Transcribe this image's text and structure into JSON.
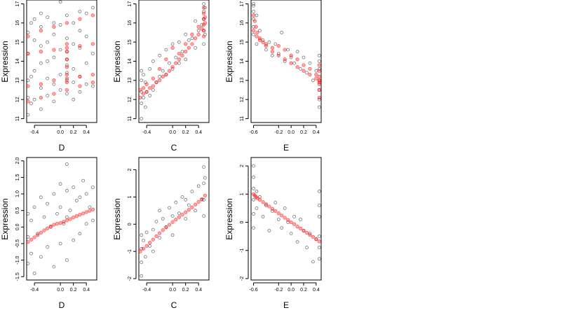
{
  "colors": {
    "observed": "#000000",
    "fitted": "#ff0000",
    "background": "#ffffff"
  },
  "chart_data": [
    {
      "type": "scatter",
      "row": 0,
      "col": 0,
      "xlabel": "D",
      "ylabel": "Expression",
      "xlim": [
        -0.52,
        0.56
      ],
      "ylim": [
        10.8,
        17.2
      ],
      "xticks": [
        -0.4,
        0.0,
        0.2,
        0.4
      ],
      "xtick_labels": [
        "-0.4",
        "0.0",
        "0.2",
        "0.4"
      ],
      "yticks": [
        11,
        12,
        13,
        14,
        15,
        16,
        17
      ],
      "ytick_labels": [
        "11",
        "12",
        "13",
        "14",
        "15",
        "16",
        "17"
      ],
      "grid": false,
      "observed": {
        "x": [
          -0.5,
          -0.5,
          -0.5,
          -0.5,
          -0.5,
          -0.45,
          -0.45,
          -0.45,
          -0.4,
          -0.4,
          -0.4,
          -0.4,
          -0.3,
          -0.3,
          -0.3,
          -0.3,
          -0.3,
          -0.3,
          -0.2,
          -0.2,
          -0.2,
          -0.2,
          -0.2,
          -0.1,
          -0.1,
          -0.1,
          -0.1,
          -0.1,
          0.0,
          0.0,
          0.0,
          0.0,
          0.0,
          0.1,
          0.1,
          0.1,
          0.1,
          0.1,
          0.1,
          0.1,
          0.1,
          0.2,
          0.2,
          0.2,
          0.2,
          0.2,
          0.3,
          0.3,
          0.3,
          0.3,
          0.3,
          0.4,
          0.4,
          0.4,
          0.4,
          0.5,
          0.5,
          0.5
        ],
        "y": [
          11.2,
          12.1,
          13.0,
          14.4,
          15.5,
          11.8,
          13.2,
          16.0,
          12.0,
          13.5,
          15.1,
          16.2,
          11.5,
          12.6,
          13.9,
          14.8,
          15.8,
          16.5,
          12.2,
          13.1,
          14.0,
          15.0,
          16.3,
          11.9,
          12.8,
          14.2,
          15.4,
          16.0,
          12.5,
          13.3,
          14.6,
          15.9,
          17.1,
          12.3,
          13.0,
          13.4,
          13.8,
          14.1,
          14.5,
          15.2,
          16.4,
          12.0,
          12.9,
          13.6,
          14.9,
          16.0,
          12.4,
          13.2,
          14.7,
          15.6,
          16.6,
          12.8,
          13.9,
          15.3,
          16.5,
          12.7,
          14.4,
          16.8
        ]
      },
      "fitted": [
        {
          "x": [
            -0.5,
            -0.3,
            -0.1,
            0.1,
            0.3,
            0.5
          ],
          "y": [
            11.9,
            12.1,
            12.3,
            12.5,
            12.7,
            12.9
          ]
        },
        {
          "x": [
            -0.5,
            -0.3,
            -0.1,
            0.1,
            0.3,
            0.5
          ],
          "y": [
            12.7,
            12.8,
            13.0,
            13.1,
            13.2,
            13.3
          ]
        },
        {
          "x": [
            -0.5,
            -0.3,
            -0.1,
            0.1,
            0.3,
            0.5
          ],
          "y": [
            14.4,
            14.5,
            14.6,
            14.7,
            14.8,
            14.9
          ]
        },
        {
          "x": [
            -0.5,
            -0.3,
            -0.1,
            0.1,
            0.3,
            0.5
          ],
          "y": [
            15.3,
            15.6,
            15.8,
            16.0,
            16.2,
            16.4
          ]
        },
        {
          "x": [
            0.1,
            0.1,
            0.1,
            0.1,
            0.1,
            0.1
          ],
          "y": [
            12.9,
            13.3,
            13.7,
            14.1,
            14.5,
            14.9
          ]
        }
      ]
    },
    {
      "type": "scatter",
      "row": 0,
      "col": 1,
      "xlabel": "C",
      "ylabel": "Expression",
      "xlim": [
        -0.52,
        0.56
      ],
      "ylim": [
        10.8,
        17.2
      ],
      "xticks": [
        -0.4,
        0.0,
        0.2,
        0.4
      ],
      "xtick_labels": [
        "-0.4",
        "0.0",
        "0.2",
        "0.4"
      ],
      "yticks": [
        11,
        12,
        13,
        14,
        15,
        16,
        17
      ],
      "ytick_labels": [
        "11",
        "12",
        "13",
        "14",
        "15",
        "16",
        "17"
      ],
      "grid": false,
      "observed": {
        "x": [
          -0.48,
          -0.48,
          -0.48,
          -0.48,
          -0.48,
          -0.45,
          -0.45,
          -0.42,
          -0.42,
          -0.4,
          -0.35,
          -0.35,
          -0.3,
          -0.3,
          -0.25,
          -0.2,
          -0.2,
          -0.15,
          -0.1,
          -0.1,
          -0.05,
          0.0,
          0.0,
          0.05,
          0.1,
          0.1,
          0.15,
          0.2,
          0.2,
          0.25,
          0.3,
          0.35,
          0.35,
          0.4,
          0.45,
          0.48,
          0.48,
          0.48,
          0.48,
          0.48,
          0.5,
          0.5
        ],
        "y": [
          11.0,
          11.8,
          12.4,
          13.0,
          13.5,
          12.1,
          13.3,
          11.6,
          12.9,
          12.4,
          12.2,
          13.6,
          12.5,
          14.0,
          12.9,
          13.2,
          14.3,
          13.5,
          13.3,
          14.6,
          13.9,
          13.6,
          14.9,
          14.2,
          13.9,
          15.0,
          14.5,
          14.1,
          15.4,
          15.1,
          15.2,
          14.7,
          16.1,
          15.6,
          15.9,
          14.9,
          15.6,
          16.2,
          16.6,
          17.0,
          15.4,
          16.8
        ]
      },
      "fitted": [
        {
          "x": [
            -0.5,
            -0.45,
            -0.4,
            -0.35,
            -0.3,
            -0.25,
            -0.2,
            -0.15,
            -0.1,
            -0.05,
            0.0,
            0.05,
            0.1,
            0.15,
            0.2,
            0.25,
            0.3,
            0.35,
            0.4,
            0.45,
            0.5
          ],
          "y": [
            12.1,
            12.3,
            12.4,
            12.6,
            12.7,
            12.9,
            13.0,
            13.2,
            13.3,
            13.5,
            13.7,
            13.9,
            14.1,
            14.3,
            14.5,
            14.7,
            14.9,
            15.2,
            15.4,
            15.7,
            16.0
          ]
        },
        {
          "x": [
            -0.5,
            -0.45,
            -0.4,
            -0.3,
            -0.2,
            -0.1,
            0.0,
            0.1,
            0.2,
            0.3,
            0.4,
            0.5
          ],
          "y": [
            12.5,
            12.6,
            12.8,
            13.1,
            13.6,
            14.1,
            14.7,
            14.4,
            14.9,
            15.4,
            15.8,
            16.3
          ]
        },
        {
          "x": [
            0.48,
            0.48,
            0.48,
            0.48,
            0.48,
            0.48
          ],
          "y": [
            15.3,
            15.6,
            15.9,
            16.2,
            16.5,
            16.8
          ]
        }
      ]
    },
    {
      "type": "scatter",
      "row": 0,
      "col": 2,
      "xlabel": "E",
      "ylabel": "Expression",
      "xlim": [
        -0.64,
        0.48
      ],
      "ylim": [
        10.8,
        17.2
      ],
      "xticks": [
        -0.6,
        -0.2,
        0.0,
        0.2,
        0.4
      ],
      "xtick_labels": [
        "-0.6",
        "-0.2",
        "0.0",
        "0.2",
        "0.4"
      ],
      "yticks": [
        11,
        12,
        13,
        14,
        15,
        16,
        17
      ],
      "ytick_labels": [
        "11",
        "12",
        "13",
        "14",
        "15",
        "16",
        "17"
      ],
      "grid": false,
      "observed": {
        "x": [
          -0.6,
          -0.6,
          -0.6,
          -0.6,
          -0.6,
          -0.6,
          -0.55,
          -0.55,
          -0.5,
          -0.45,
          -0.4,
          -0.35,
          -0.3,
          -0.25,
          -0.2,
          -0.15,
          -0.1,
          -0.05,
          0.0,
          0.05,
          0.1,
          0.15,
          0.2,
          0.25,
          0.3,
          0.35,
          0.4,
          0.45,
          0.45,
          0.45,
          0.45,
          0.45,
          0.45,
          0.45
        ],
        "y": [
          15.4,
          15.8,
          16.2,
          16.6,
          16.9,
          17.0,
          14.9,
          16.4,
          15.6,
          15.1,
          14.6,
          15.0,
          14.3,
          14.9,
          14.4,
          15.5,
          14.0,
          14.6,
          14.2,
          13.9,
          14.5,
          13.6,
          14.2,
          13.4,
          13.9,
          13.0,
          13.5,
          11.6,
          12.0,
          12.5,
          13.0,
          13.6,
          14.0,
          14.3
        ]
      },
      "fitted": [
        {
          "x": [
            -0.6,
            -0.58,
            -0.56,
            -0.54,
            -0.5,
            -0.45,
            -0.4,
            -0.3,
            -0.2,
            -0.1,
            0.0,
            0.1,
            0.2,
            0.3,
            0.4,
            0.45
          ],
          "y": [
            16.4,
            16.1,
            15.8,
            15.5,
            15.2,
            15.0,
            14.8,
            14.5,
            14.3,
            14.1,
            13.9,
            13.7,
            13.5,
            13.3,
            13.1,
            12.8
          ]
        },
        {
          "x": [
            -0.6,
            -0.55,
            -0.5,
            -0.4,
            -0.3,
            -0.2,
            -0.1,
            0.0,
            0.1,
            0.2,
            0.3,
            0.4,
            0.45
          ],
          "y": [
            15.6,
            15.3,
            15.1,
            14.9,
            14.7,
            14.8,
            14.6,
            14.3,
            14.1,
            13.8,
            13.6,
            13.3,
            13.0
          ]
        },
        {
          "x": [
            0.45,
            0.45,
            0.45,
            0.45,
            0.45,
            0.45
          ],
          "y": [
            12.1,
            12.5,
            12.9,
            13.2,
            13.5,
            13.8
          ]
        }
      ]
    },
    {
      "type": "scatter",
      "row": 1,
      "col": 0,
      "xlabel": "D",
      "ylabel": "Expression",
      "xlim": [
        -0.52,
        0.56
      ],
      "ylim": [
        -1.6,
        2.1
      ],
      "xticks": [
        -0.4,
        0.0,
        0.2,
        0.4
      ],
      "xtick_labels": [
        "-0.4",
        "0.0",
        "0.2",
        "0.4"
      ],
      "yticks": [
        -1.5,
        -1.0,
        -0.5,
        0.0,
        0.5,
        1.0,
        1.5,
        2.0
      ],
      "ytick_labels": [
        "-1.5",
        "-1.0",
        "-0.5",
        "0.0",
        "0.5",
        "1.0",
        "1.5",
        "2.0"
      ],
      "grid": false,
      "observed": {
        "x": [
          -0.5,
          -0.5,
          -0.5,
          -0.45,
          -0.45,
          -0.4,
          -0.4,
          -0.35,
          -0.3,
          -0.3,
          -0.25,
          -0.2,
          -0.2,
          -0.15,
          -0.1,
          -0.1,
          -0.05,
          0.0,
          0.0,
          0.0,
          0.05,
          0.1,
          0.1,
          0.1,
          0.1,
          0.15,
          0.2,
          0.2,
          0.25,
          0.3,
          0.3,
          0.35,
          0.4,
          0.4,
          0.45,
          0.5,
          0.5
        ],
        "y": [
          -1.1,
          -0.3,
          0.4,
          -0.8,
          0.2,
          -1.4,
          0.6,
          -0.2,
          -0.9,
          0.9,
          0.3,
          -0.6,
          0.7,
          0.0,
          -1.2,
          1.0,
          0.4,
          -0.5,
          0.6,
          1.3,
          0.1,
          -1.0,
          0.3,
          1.1,
          1.9,
          0.5,
          -0.4,
          1.2,
          0.8,
          -0.2,
          0.9,
          1.4,
          0.1,
          1.0,
          0.6,
          0.2,
          1.2
        ]
      },
      "fitted": [
        {
          "x": [
            -0.5,
            -0.45,
            -0.4,
            -0.35,
            -0.3,
            -0.25,
            -0.2,
            -0.15,
            -0.1,
            -0.05,
            0.0,
            0.05,
            0.1,
            0.15,
            0.2,
            0.25,
            0.3,
            0.35,
            0.4,
            0.45,
            0.5
          ],
          "y": [
            -0.45,
            -0.38,
            -0.31,
            -0.24,
            -0.17,
            -0.1,
            -0.04,
            0.02,
            0.07,
            0.1,
            0.12,
            0.16,
            0.2,
            0.24,
            0.29,
            0.33,
            0.37,
            0.41,
            0.45,
            0.49,
            0.53
          ]
        }
      ]
    },
    {
      "type": "scatter",
      "row": 1,
      "col": 1,
      "xlabel": "C",
      "ylabel": "Expression",
      "xlim": [
        -0.52,
        0.56
      ],
      "ylim": [
        -2.05,
        2.45
      ],
      "xticks": [
        -0.4,
        0.0,
        0.2,
        0.4
      ],
      "xtick_labels": [
        "-0.4",
        "0.0",
        "0.2",
        "0.4"
      ],
      "yticks": [
        -2,
        -1,
        0,
        1,
        2
      ],
      "ytick_labels": [
        "-2",
        "-1",
        "0",
        "1",
        "2"
      ],
      "grid": false,
      "observed": {
        "x": [
          -0.48,
          -0.48,
          -0.48,
          -0.48,
          -0.45,
          -0.42,
          -0.4,
          -0.35,
          -0.3,
          -0.3,
          -0.25,
          -0.2,
          -0.2,
          -0.15,
          -0.1,
          -0.05,
          0.0,
          0.0,
          0.05,
          0.1,
          0.15,
          0.2,
          0.2,
          0.25,
          0.3,
          0.35,
          0.4,
          0.45,
          0.48,
          0.48,
          0.48,
          0.48,
          0.5
        ],
        "y": [
          -1.9,
          -1.4,
          -0.9,
          -0.4,
          -0.6,
          -1.2,
          -0.3,
          -0.8,
          -0.2,
          -1.0,
          0.1,
          -0.5,
          0.5,
          0.2,
          -0.1,
          0.6,
          0.3,
          -0.4,
          0.8,
          0.4,
          1.0,
          0.2,
          0.9,
          0.7,
          1.2,
          0.5,
          1.4,
          0.9,
          0.3,
          0.9,
          1.5,
          2.1,
          1.7
        ]
      },
      "fitted": [
        {
          "x": [
            -0.5,
            -0.45,
            -0.4,
            -0.35,
            -0.3,
            -0.25,
            -0.2,
            -0.15,
            -0.1,
            -0.05,
            0.0,
            0.05,
            0.1,
            0.15,
            0.2,
            0.25,
            0.3,
            0.35,
            0.4,
            0.45,
            0.5
          ],
          "y": [
            -1.0,
            -0.9,
            -0.8,
            -0.68,
            -0.56,
            -0.44,
            -0.33,
            -0.22,
            -0.12,
            -0.02,
            0.08,
            0.17,
            0.26,
            0.35,
            0.44,
            0.53,
            0.62,
            0.72,
            0.82,
            0.92,
            1.05
          ]
        }
      ]
    },
    {
      "type": "scatter",
      "row": 1,
      "col": 2,
      "xlabel": "E",
      "ylabel": "Expression",
      "xlim": [
        -0.64,
        0.48
      ],
      "ylim": [
        -2.05,
        2.3
      ],
      "xticks": [
        -0.6,
        -0.2,
        0.0,
        0.2,
        0.4
      ],
      "xtick_labels": [
        "-0.6",
        "-0.2",
        "0.0",
        "0.2",
        "0.4"
      ],
      "yticks": [
        -2,
        -1,
        0,
        1,
        2
      ],
      "ytick_labels": [
        "-2",
        "-1",
        "0",
        "1",
        "2"
      ],
      "grid": false,
      "observed": {
        "x": [
          -0.6,
          -0.6,
          -0.6,
          -0.6,
          -0.6,
          -0.6,
          -0.55,
          -0.55,
          -0.5,
          -0.45,
          -0.4,
          -0.35,
          -0.3,
          -0.25,
          -0.2,
          -0.15,
          -0.1,
          -0.05,
          0.0,
          0.05,
          0.1,
          0.15,
          0.2,
          0.25,
          0.3,
          0.35,
          0.4,
          0.45,
          0.45,
          0.45,
          0.45,
          0.45,
          0.45
        ],
        "y": [
          0.3,
          0.8,
          1.2,
          1.6,
          2.0,
          -0.2,
          0.5,
          1.1,
          0.9,
          0.2,
          0.6,
          -0.3,
          0.4,
          0.7,
          0.1,
          -0.2,
          0.5,
          0.0,
          -0.4,
          0.2,
          -0.7,
          0.1,
          -0.3,
          -0.9,
          -0.4,
          -1.4,
          -0.6,
          -1.3,
          -0.9,
          -0.5,
          0.2,
          0.6,
          1.1
        ]
      },
      "fitted": [
        {
          "x": [
            -0.6,
            -0.58,
            -0.56,
            -0.54,
            -0.5,
            -0.45,
            -0.4,
            -0.35,
            -0.3,
            -0.25,
            -0.2,
            -0.15,
            -0.1,
            -0.05,
            0.0,
            0.05,
            0.1,
            0.15,
            0.2,
            0.25,
            0.3,
            0.35,
            0.4,
            0.45
          ],
          "y": [
            1.0,
            0.95,
            0.9,
            0.85,
            0.8,
            0.72,
            0.64,
            0.56,
            0.48,
            0.4,
            0.32,
            0.24,
            0.16,
            0.08,
            0.0,
            -0.07,
            -0.15,
            -0.22,
            -0.3,
            -0.37,
            -0.45,
            -0.52,
            -0.6,
            -0.68
          ]
        }
      ]
    }
  ]
}
